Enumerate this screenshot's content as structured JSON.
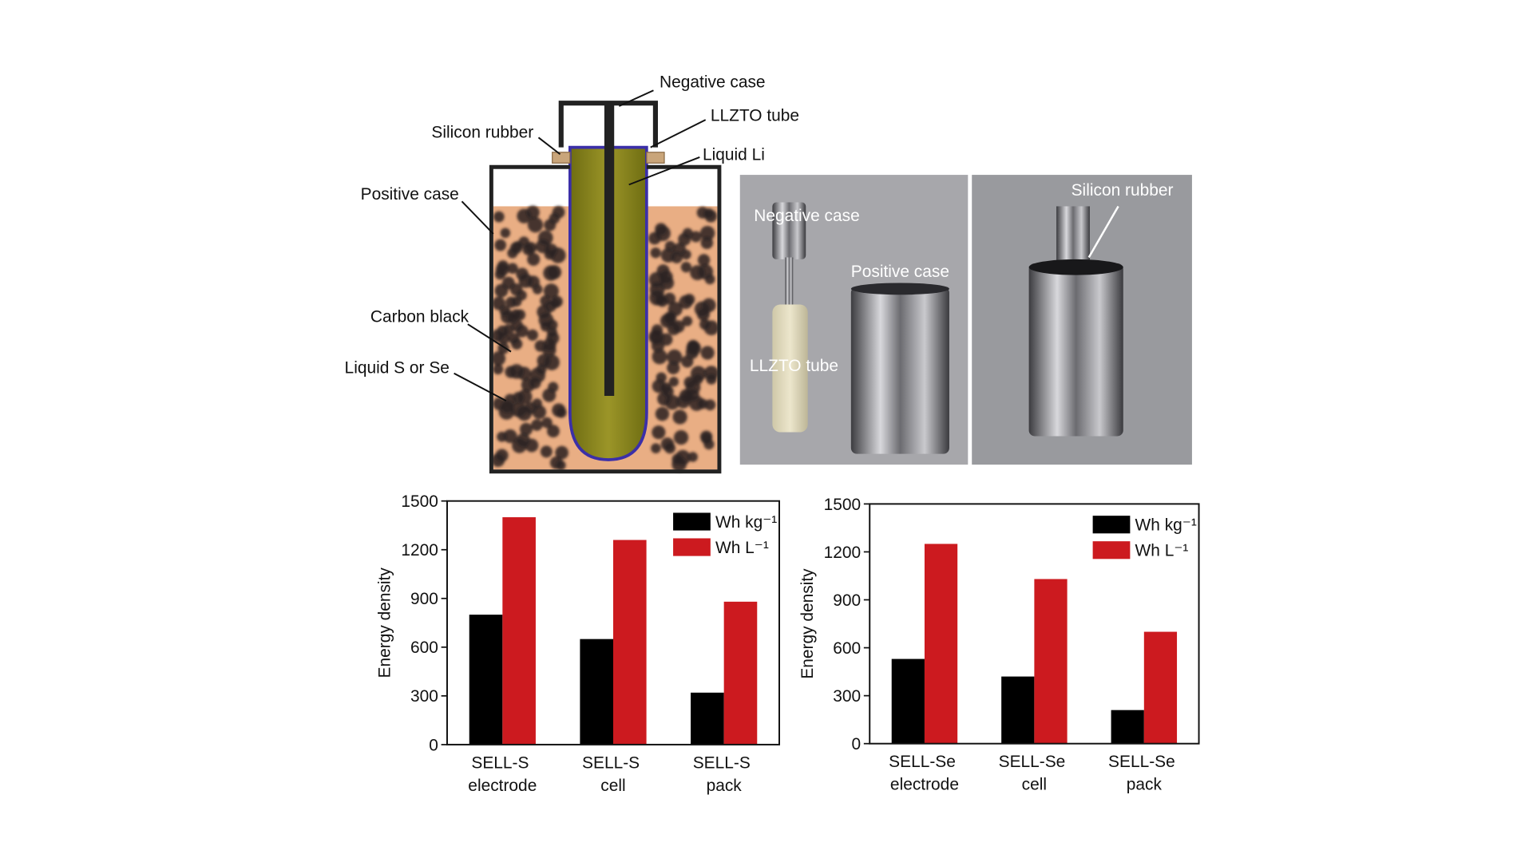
{
  "diagram": {
    "labels": [
      "Negative case",
      "LLZTO tube",
      "Silicon rubber",
      "Liquid Li",
      "Positive case",
      "Carbon black",
      "Liquid S or Se"
    ]
  },
  "photos": {
    "left_labels": [
      "Negative case",
      "Positive case",
      "LLZTO tube"
    ],
    "right_labels": [
      "Silicon rubber"
    ]
  },
  "chart_data": [
    {
      "type": "bar",
      "ylabel": "Energy density",
      "categories": [
        "SELL-S electrode",
        "SELL-S cell",
        "SELL-S pack"
      ],
      "series": [
        {
          "name": "Wh kg⁻¹",
          "color": "#000000",
          "values": [
            800,
            650,
            320
          ]
        },
        {
          "name": "Wh L⁻¹",
          "color": "#cc1a1f",
          "values": [
            1400,
            1260,
            880
          ]
        }
      ],
      "ylim": [
        0,
        1500
      ],
      "yticks": [
        0,
        300,
        600,
        900,
        1200,
        1500
      ],
      "legend": "upper right"
    },
    {
      "type": "bar",
      "ylabel": "Energy density",
      "categories": [
        "SELL-Se electrode",
        "SELL-Se cell",
        "SELL-Se pack"
      ],
      "series": [
        {
          "name": "Wh kg⁻¹",
          "color": "#000000",
          "values": [
            530,
            420,
            210
          ]
        },
        {
          "name": "Wh L⁻¹",
          "color": "#cc1a1f",
          "values": [
            1250,
            1030,
            700
          ]
        }
      ],
      "ylim": [
        0,
        1500
      ],
      "yticks": [
        0,
        300,
        600,
        900,
        1200,
        1500
      ],
      "legend": "upper right"
    }
  ]
}
